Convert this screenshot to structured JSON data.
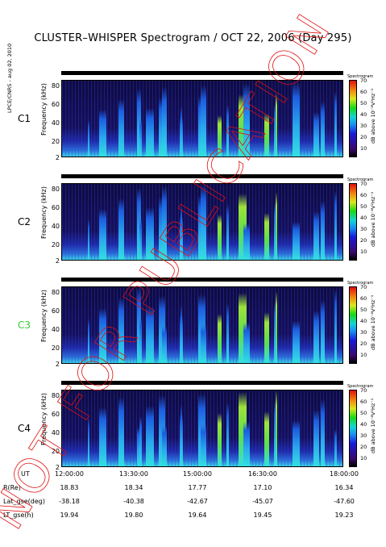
{
  "title": "CLUSTER–WHISPER Spectrogram / OCT 22, 2006 (Day 295)",
  "side_label": "LPCE/CNRS - aug 02, 2010",
  "stamp_text": "NOT FOR PUBLICATION",
  "colors": {
    "background": "#ffffff",
    "stamp": "#e01010",
    "spacecraft_green": "#33cc33"
  },
  "chart_data": {
    "type": "heatmap",
    "title": "CLUSTER–WHISPER Spectrogram / OCT 22, 2006 (Day 295)",
    "ylabel": "Frequency (kHz)",
    "ylim": [
      2,
      80
    ],
    "yticks": [
      "80",
      "60",
      "40",
      "20",
      "2"
    ],
    "colorbar": {
      "label": "dB above 10⁻⁸V²Hz⁻¹",
      "title": "Spectrogram",
      "ticks": [
        "70",
        "60",
        "50",
        "40",
        "30",
        "20",
        "10"
      ],
      "range": [
        10,
        70
      ]
    },
    "panels": [
      {
        "name": "C1",
        "color": "#000000"
      },
      {
        "name": "C2",
        "color": "#000000"
      },
      {
        "name": "C3",
        "color": "#33cc33"
      },
      {
        "name": "C4",
        "color": "#000000"
      }
    ],
    "bursts_ut_hours": [
      12.55,
      12.78,
      13.2,
      13.6,
      13.65,
      13.78,
      14.05,
      14.12,
      14.5,
      14.52,
      14.9,
      14.95,
      15.3,
      15.5,
      15.75,
      15.85,
      16.3,
      16.5,
      16.55,
      16.9,
      17.35,
      17.5,
      17.8
    ],
    "x_range_ut_hours": [
      12.0,
      18.0
    ],
    "ephemeris": {
      "rows": [
        "UT",
        "R(Re)",
        "Lat_gse(deg)",
        "LT_gse(h)"
      ],
      "columns": [
        [
          "12:00:00",
          "18.83",
          "-38.18",
          "19.94"
        ],
        [
          "13:30:00",
          "18.34",
          "-40.38",
          "19.80"
        ],
        [
          "15:00:00",
          "17.77",
          "-42.67",
          "19.64"
        ],
        [
          "16:30:00",
          "17.10",
          "-45.07",
          "19.45"
        ],
        [
          "18:00:00",
          "16.34",
          "-47.60",
          "19.23"
        ]
      ]
    }
  }
}
